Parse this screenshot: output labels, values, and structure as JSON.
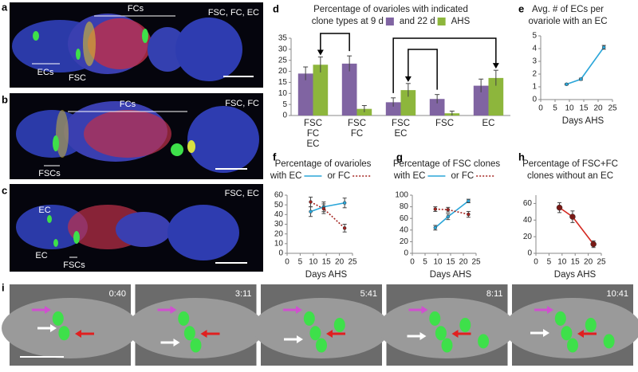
{
  "images": [
    {
      "letter": "a",
      "labels": [
        "FCs",
        "FSC, FC, EC",
        "ECs",
        "FSC"
      ]
    },
    {
      "letter": "b",
      "labels": [
        "FCs",
        "FSC, FC",
        "FSCs"
      ]
    },
    {
      "letter": "c",
      "labels": [
        "FSC, EC",
        "EC",
        "EC",
        "FSCs"
      ]
    }
  ],
  "timelapse": {
    "letter": "i",
    "times": [
      "0:40",
      "3:11",
      "5:41",
      "8:11",
      "10:41"
    ]
  },
  "label_colors": {
    "FSC": "#000000",
    "FC": "#e0201c",
    "EC": "#2ba6d9"
  },
  "chart_data": [
    {
      "type": "bar",
      "letter": "d",
      "title": "Percentage of ovarioles with indicated",
      "legend_end": "AHS",
      "categories": [
        [
          "FSC",
          "FC",
          "EC"
        ],
        [
          "FSC",
          "FC"
        ],
        [
          "FSC",
          "EC"
        ],
        [
          "FSC"
        ],
        [
          "EC"
        ]
      ],
      "series": [
        {
          "name": "clone types at 9 d",
          "color": "#8064a2",
          "values": [
            19,
            23.5,
            6,
            7.5,
            13.5
          ],
          "errors": [
            3,
            3.5,
            2,
            2,
            3
          ]
        },
        {
          "name": "and 22 d",
          "color": "#8db63c",
          "values": [
            23,
            3,
            11.5,
            1,
            17
          ],
          "errors": [
            3.5,
            1.5,
            3,
            1,
            3.5
          ]
        }
      ],
      "ylim": [
        0,
        35
      ],
      "yticks": [
        0,
        5,
        10,
        15,
        20,
        25,
        30,
        35
      ]
    },
    {
      "type": "line",
      "letter": "e",
      "title": [
        "Avg. # of ECs per",
        "ovariole with an EC"
      ],
      "xlabel": "Days AHS",
      "x": [
        9,
        14,
        22
      ],
      "series": [
        {
          "color": "#2ba6d9",
          "values": [
            1.2,
            1.6,
            4.1
          ],
          "errors": [
            0.05,
            0.08,
            0.15
          ]
        }
      ],
      "xlim": [
        0,
        25
      ],
      "xticks": [
        0,
        5,
        10,
        15,
        20,
        25
      ],
      "ylim": [
        0,
        5
      ],
      "yticks": [
        0,
        1,
        2,
        3,
        4,
        5
      ]
    },
    {
      "type": "line",
      "letter": "f",
      "title": "Percentage of ovarioles",
      "xlabel": "Days AHS",
      "x": [
        9,
        14,
        22
      ],
      "series": [
        {
          "name": "with EC",
          "color": "#2ba6d9",
          "values": [
            43,
            48,
            52
          ],
          "errors": [
            5,
            5,
            5
          ]
        },
        {
          "name": "or FC",
          "color": "#a3231f",
          "dashed": true,
          "values": [
            53,
            46,
            26
          ],
          "errors": [
            5,
            5,
            4
          ]
        }
      ],
      "xlim": [
        0,
        25
      ],
      "xticks": [
        0,
        5,
        10,
        15,
        20,
        25
      ],
      "ylim": [
        0,
        60
      ],
      "yticks": [
        0,
        10,
        20,
        30,
        40,
        50,
        60
      ]
    },
    {
      "type": "line",
      "letter": "g",
      "title": "Percentage of FSC clones",
      "xlabel": "Days AHS",
      "x": [
        9,
        14,
        22
      ],
      "series": [
        {
          "name": "with EC",
          "color": "#2ba6d9",
          "values": [
            44,
            63,
            90
          ],
          "errors": [
            4,
            5,
            3
          ]
        },
        {
          "name": "or FC",
          "color": "#a3231f",
          "dashed": true,
          "values": [
            76,
            75,
            67
          ],
          "errors": [
            4,
            4,
            5
          ]
        }
      ],
      "xlim": [
        0,
        25
      ],
      "xticks": [
        0,
        5,
        10,
        15,
        20,
        25
      ],
      "ylim": [
        0,
        100
      ],
      "yticks": [
        0,
        20,
        40,
        60,
        80,
        100
      ]
    },
    {
      "type": "line",
      "letter": "h",
      "title": [
        "Percentage of FSC+FC",
        "clones without an EC"
      ],
      "xlabel": "Days AHS",
      "x": [
        9,
        14,
        22
      ],
      "series": [
        {
          "color": "#d42a22",
          "marker": "#7a1a16",
          "values": [
            55,
            44,
            11
          ],
          "errors": [
            6,
            7,
            4
          ]
        }
      ],
      "xlim": [
        0,
        25
      ],
      "xticks": [
        0,
        5,
        10,
        15,
        20,
        25
      ],
      "ylim": [
        0,
        70
      ],
      "yticks": [
        0,
        20,
        40,
        60
      ]
    }
  ]
}
